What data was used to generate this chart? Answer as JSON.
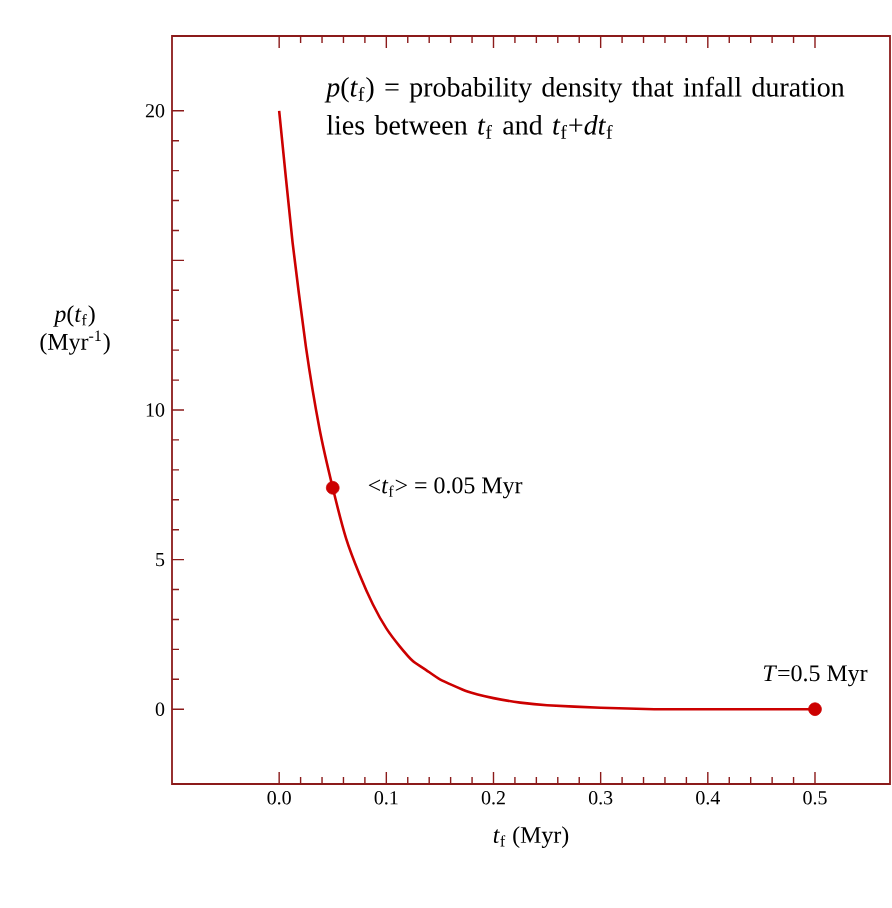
{
  "chart_data": {
    "type": "line",
    "xlabel": "*t*$_{f}$ (Myr)",
    "ylabel": "*p*(*t*$_{f}$) (Myr$^{-1}$)",
    "annotations": [
      "*p*(*t*$_{f}$) = probability density that infall duration lies between *t*$_{f}$ and *t*$_{f}$+*dt*$_{f}$",
      {
        "text": "<*t*$_{f}$> = 0.05 Myr",
        "x": 0.05,
        "y": 7.4
      },
      {
        "text": "*T*=0.5 Myr",
        "x": 0.5,
        "y": 0
      }
    ],
    "xlim": [
      -0.1,
      0.57
    ],
    "ylim": [
      -2.5,
      22.5
    ],
    "xticks": [
      {
        "value": 0,
        "label": "0.0"
      },
      {
        "value": 0.1,
        "label": "0.1"
      },
      {
        "value": 0.2,
        "label": "0.2"
      },
      {
        "value": 0.3,
        "label": "0.3"
      },
      {
        "value": 0.4,
        "label": "0.4"
      },
      {
        "value": 0.5,
        "label": "0.5"
      }
    ],
    "yticks": [
      0,
      5,
      10,
      {
        "value": 15,
        "label": null
      },
      20
    ],
    "series": [
      {
        "type": "line",
        "color": "#cc0000",
        "marker": "none",
        "x": [
          0,
          0.0125,
          0.025,
          0.0375,
          0.05,
          0.0625,
          0.075,
          0.0875,
          0.1,
          0.1125,
          0.125,
          0.1375,
          0.15,
          0.175,
          0.2,
          0.225,
          0.25,
          0.3,
          0.35,
          0.4,
          0.45,
          0.5
        ],
        "values": [
          20,
          15.6,
          12.1,
          9.4,
          7.4,
          5.7,
          4.5,
          3.5,
          2.7,
          2.1,
          1.6,
          1.3,
          1.0,
          0.6,
          0.37,
          0.22,
          0.13,
          0.05,
          0,
          0,
          0,
          0
        ]
      },
      {
        "type": "scatter",
        "color": "#cc0000",
        "marker": "circle",
        "x": [
          0.05,
          0.5
        ],
        "values": [
          7.4,
          0
        ]
      }
    ]
  }
}
